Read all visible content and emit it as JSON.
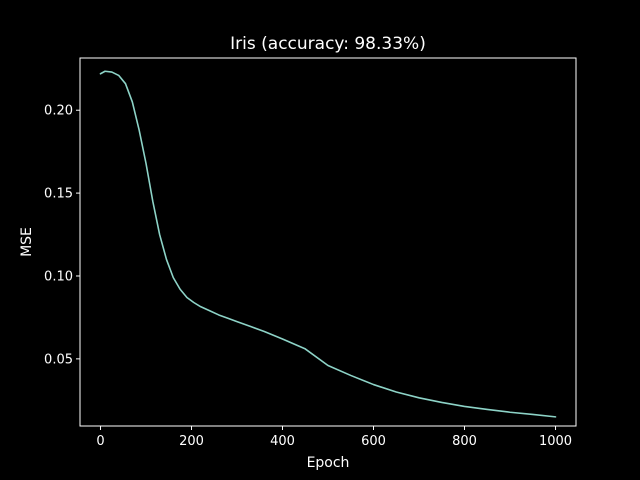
{
  "chart_data": {
    "type": "line",
    "title": "Iris (accuracy: 98.33%)",
    "xlabel": "Epoch",
    "ylabel": "MSE",
    "xlim": [
      -45,
      1045
    ],
    "ylim": [
      0.0095,
      0.2315
    ],
    "xticks": [
      0,
      200,
      400,
      600,
      800,
      1000
    ],
    "xtick_labels": [
      "0",
      "200",
      "400",
      "600",
      "800",
      "1000"
    ],
    "yticks": [
      0.05,
      0.1,
      0.15,
      0.2
    ],
    "ytick_labels": [
      "0.05",
      "0.10",
      "0.15",
      "0.20"
    ],
    "grid": false,
    "legend": "none",
    "series": [
      {
        "color": "#8dd3c7",
        "x": [
          0,
          10,
          25,
          40,
          55,
          70,
          85,
          100,
          115,
          130,
          145,
          160,
          175,
          190,
          205,
          220,
          240,
          260,
          280,
          300,
          330,
          360,
          400,
          450,
          500,
          550,
          600,
          650,
          700,
          750,
          800,
          850,
          900,
          950,
          1000
        ],
        "y": [
          0.222,
          0.2235,
          0.223,
          0.221,
          0.216,
          0.205,
          0.188,
          0.168,
          0.145,
          0.125,
          0.11,
          0.099,
          0.092,
          0.087,
          0.084,
          0.0815,
          0.079,
          0.0765,
          0.0745,
          0.0725,
          0.0695,
          0.0665,
          0.062,
          0.056,
          0.046,
          0.04,
          0.0345,
          0.03,
          0.0265,
          0.0237,
          0.0213,
          0.0195,
          0.0178,
          0.0165,
          0.015
        ]
      }
    ]
  }
}
